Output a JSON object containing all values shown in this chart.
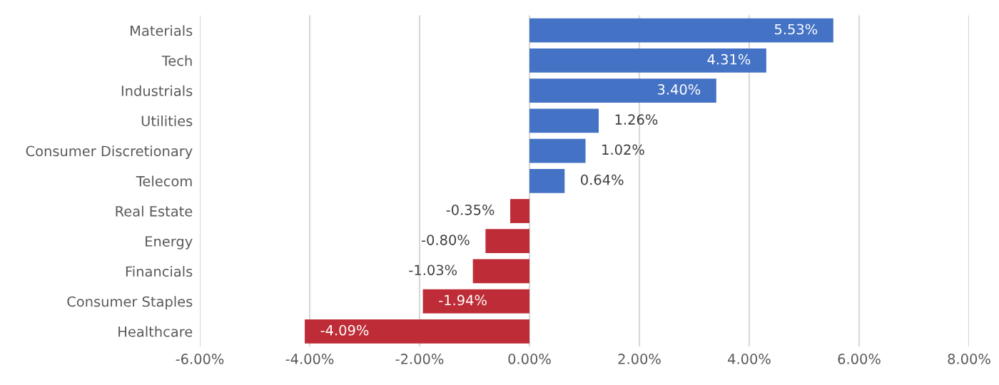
{
  "chart_data": {
    "type": "bar",
    "orientation": "horizontal",
    "categories": [
      "Materials",
      "Tech",
      "Industrials",
      "Utilities",
      "Consumer Discretionary",
      "Telecom",
      "Real Estate",
      "Energy",
      "Financials",
      "Consumer Staples",
      "Healthcare"
    ],
    "values": [
      5.53,
      4.31,
      3.4,
      1.26,
      1.02,
      0.64,
      -0.35,
      -0.8,
      -1.03,
      -1.94,
      -4.09
    ],
    "colors": [
      "#4472c4",
      "#4472c4",
      "#4472c4",
      "#4472c4",
      "#4472c4",
      "#4472c4",
      "#be2d37",
      "#be2d37",
      "#be2d37",
      "#be2d37",
      "#be2d37"
    ],
    "value_labels": [
      "5.53%",
      "4.31%",
      "3.40%",
      "1.26%",
      "1.02%",
      "0.64%",
      "-0.35%",
      "-0.80%",
      "-1.03%",
      "-1.94%",
      "-4.09%"
    ],
    "xlim": [
      -6,
      8
    ],
    "xticks": [
      {
        "value": -6,
        "label": "-6.00%"
      },
      {
        "value": -4,
        "label": "-4.00%"
      },
      {
        "value": -2,
        "label": "-2.00%"
      },
      {
        "value": 0,
        "label": "0.00%"
      },
      {
        "value": 2,
        "label": "2.00%"
      },
      {
        "value": 4,
        "label": "4.00%"
      },
      {
        "value": 6,
        "label": "6.00%"
      },
      {
        "value": 8,
        "label": "8.00%"
      }
    ],
    "grid": "x"
  }
}
